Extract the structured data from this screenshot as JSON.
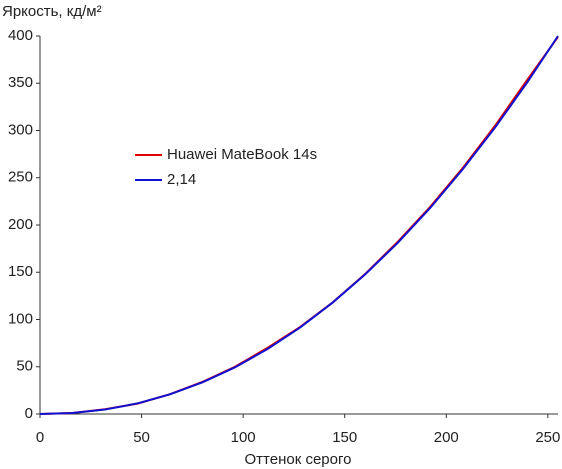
{
  "chart_data": {
    "type": "line",
    "y_label": "Яркость, кд/м²",
    "x_label": "Оттенок серого",
    "x": [
      0,
      16,
      32,
      48,
      64,
      80,
      96,
      112,
      128,
      144,
      160,
      176,
      192,
      208,
      224,
      240,
      255
    ],
    "series": [
      {
        "name": "Huawei MateBook 14s",
        "color": "#e00000",
        "values": [
          0,
          1,
          5,
          11,
          21,
          34,
          50,
          70,
          92,
          118,
          148,
          182,
          219,
          260,
          305,
          354,
          399
        ]
      },
      {
        "name": "2,14",
        "color": "#1010d0",
        "values": [
          0,
          1.07,
          4.71,
          11.2,
          20.8,
          33.5,
          49.4,
          68.8,
          91.5,
          117.8,
          147.6,
          180.9,
          217.9,
          258.7,
          303.1,
          351.4,
          400
        ]
      }
    ],
    "xlim": [
      0,
      255
    ],
    "ylim": [
      0,
      400
    ],
    "xticks": [
      0,
      50,
      100,
      150,
      200,
      250
    ],
    "yticks": [
      0,
      50,
      100,
      150,
      200,
      250,
      300,
      350,
      400
    ],
    "grid": false,
    "legend": "center left"
  }
}
